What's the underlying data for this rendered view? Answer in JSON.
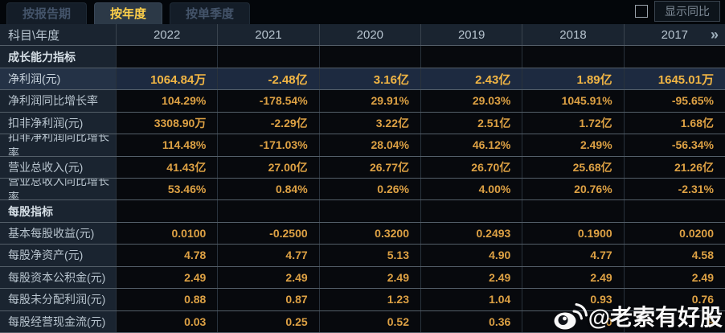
{
  "tabs": [
    {
      "label": "按报告期",
      "active": false
    },
    {
      "label": "按年度",
      "active": true
    },
    {
      "label": "按单季度",
      "active": false
    }
  ],
  "toolbar": {
    "show_yoy_label": "显示同比",
    "checkbox_checked": false
  },
  "table": {
    "header": {
      "label": "科目\\年度",
      "years": [
        "2022",
        "2021",
        "2020",
        "2019",
        "2018",
        "2017"
      ],
      "more_icon": "»"
    },
    "rows": [
      {
        "type": "section",
        "label": "成长能力指标",
        "values": [
          "",
          "",
          "",
          "",
          "",
          ""
        ]
      },
      {
        "type": "highlight",
        "label": "净利润(元)",
        "values": [
          "1064.84万",
          "-2.48亿",
          "3.16亿",
          "2.43亿",
          "1.89亿",
          "1645.01万"
        ]
      },
      {
        "type": "data",
        "label": "净利润同比增长率",
        "values": [
          "104.29%",
          "-178.54%",
          "29.91%",
          "29.03%",
          "1045.91%",
          "-95.65%"
        ]
      },
      {
        "type": "data",
        "label": "扣非净利润(元)",
        "values": [
          "3308.90万",
          "-2.29亿",
          "3.22亿",
          "2.51亿",
          "1.72亿",
          "1.68亿"
        ]
      },
      {
        "type": "data",
        "label": "扣非净利润同比增长率",
        "values": [
          "114.48%",
          "-171.03%",
          "28.04%",
          "46.12%",
          "2.49%",
          "-56.34%"
        ]
      },
      {
        "type": "data",
        "label": "营业总收入(元)",
        "values": [
          "41.43亿",
          "27.00亿",
          "26.77亿",
          "26.70亿",
          "25.68亿",
          "21.26亿"
        ]
      },
      {
        "type": "data",
        "label": "营业总收入同比增长率",
        "values": [
          "53.46%",
          "0.84%",
          "0.26%",
          "4.00%",
          "20.76%",
          "-2.31%"
        ]
      },
      {
        "type": "section",
        "label": "每股指标",
        "values": [
          "",
          "",
          "",
          "",
          "",
          ""
        ]
      },
      {
        "type": "data",
        "label": "基本每股收益(元)",
        "values": [
          "0.0100",
          "-0.2500",
          "0.3200",
          "0.2493",
          "0.1900",
          "0.0200"
        ]
      },
      {
        "type": "data",
        "label": "每股净资产(元)",
        "values": [
          "4.78",
          "4.77",
          "5.13",
          "4.90",
          "4.77",
          "4.58"
        ]
      },
      {
        "type": "data",
        "label": "每股资本公积金(元)",
        "values": [
          "2.49",
          "2.49",
          "2.49",
          "2.49",
          "2.49",
          "2.49"
        ]
      },
      {
        "type": "data",
        "label": "每股未分配利润(元)",
        "values": [
          "0.88",
          "0.87",
          "1.23",
          "1.04",
          "0.93",
          "0.76"
        ]
      },
      {
        "type": "data",
        "label": "每股经营现金流(元)",
        "values": [
          "0.03",
          "0.25",
          "0.52",
          "0.36",
          "0",
          "9"
        ],
        "note": "2018/2017 values partially obscured by watermark; only fragments visible"
      }
    ]
  },
  "watermark": {
    "icon": "weibo-icon",
    "text": "@老索有好股"
  },
  "colors": {
    "accent_gold": "#ffd04a",
    "value_orange": "#dda144",
    "highlight_value": "#f1b544",
    "header_bg": "#1a2430",
    "highlight_row_bg": "#1d2a40",
    "cell_bg": "#07090d",
    "row_border": "#545f69"
  }
}
